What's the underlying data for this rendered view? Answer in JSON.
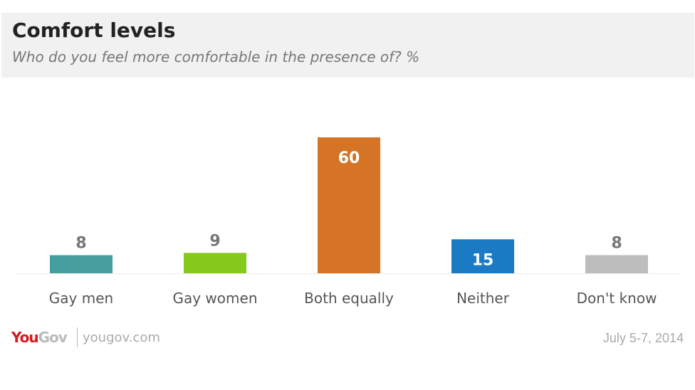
{
  "header": {
    "title": "Comfort levels",
    "subtitle": "Who do you feel more comfortable in the presence of? %"
  },
  "chart_data": {
    "type": "bar",
    "title": "Comfort levels",
    "subtitle": "Who do you feel more comfortable in the presence of? %",
    "categories": [
      "Gay men",
      "Gay women",
      "Both equally",
      "Neither",
      "Don't know"
    ],
    "values": [
      8,
      9,
      60,
      15,
      8
    ],
    "colors": [
      "#479e9e",
      "#84c91c",
      "#d47424",
      "#1a7ac4",
      "#bdbdbd"
    ],
    "label_inside": [
      false,
      false,
      true,
      true,
      false
    ],
    "xlabel": "",
    "ylabel": "",
    "ylim": [
      0,
      60
    ],
    "grid": false
  },
  "footer": {
    "logo_you": "You",
    "logo_gov": "Gov",
    "site": "yougov.com",
    "date": "July 5-7, 2014"
  }
}
